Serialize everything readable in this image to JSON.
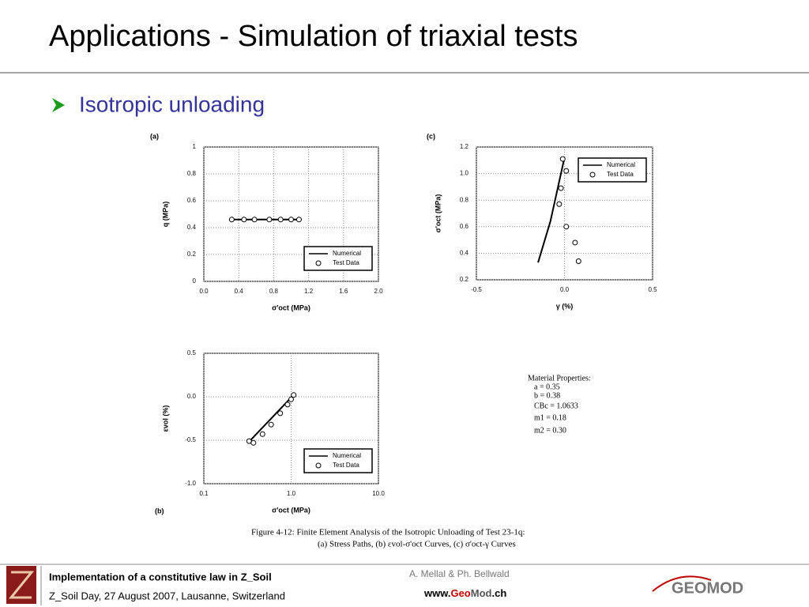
{
  "header": {
    "title": "Applications - Simulation of triaxial tests"
  },
  "bullet": "Isotropic unloading",
  "chart_data": [
    {
      "type": "scatter",
      "panel": "(a)",
      "xlabel": "σ'oct (MPa)",
      "ylabel": "q (MPa)",
      "xlim": [
        0,
        2
      ],
      "xticks": [
        {
          "value": 0,
          "label": "0.0"
        },
        0.4,
        0.8,
        1.2,
        1.6,
        {
          "value": 2,
          "label": "2.0"
        }
      ],
      "ylim": [
        0,
        1
      ],
      "yticks": [
        0,
        0.2,
        0.4,
        0.6,
        0.8,
        1
      ],
      "grid": true,
      "legend": "lower right",
      "series": [
        {
          "name": "Numerical",
          "mode": "line",
          "color": "#000000",
          "x": [
            0.32,
            1.09
          ],
          "y": [
            0.46,
            0.46
          ]
        },
        {
          "name": "Test Data",
          "mode": "markers",
          "color": "#000000",
          "x": [
            0.32,
            0.46,
            0.58,
            0.75,
            0.88,
            1.0,
            1.09
          ],
          "y": [
            0.46,
            0.46,
            0.46,
            0.46,
            0.46,
            0.46,
            0.46
          ]
        }
      ]
    },
    {
      "type": "scatter",
      "panel": "(c)",
      "xlabel": "γ (%)",
      "ylabel": "σ'oct (MPa)",
      "xlim": [
        -0.5,
        0.5
      ],
      "xticks": [
        -0.5,
        {
          "value": 0,
          "label": "0.0"
        },
        0.5
      ],
      "ylim": [
        0.2,
        1.2
      ],
      "yticks": [
        0.2,
        0.4,
        0.6,
        0.8,
        {
          "value": 1,
          "label": "1.0"
        },
        1.2
      ],
      "grid": true,
      "legend": "upper right",
      "series": [
        {
          "name": "Numerical",
          "mode": "line",
          "color": "#000000",
          "x": [
            -0.15,
            -0.08,
            0.0
          ],
          "y": [
            0.33,
            0.64,
            1.12
          ]
        },
        {
          "name": "Test Data",
          "mode": "markers",
          "color": "#000000",
          "x": [
            -0.01,
            0.01,
            -0.02,
            -0.03,
            0.01,
            0.06,
            0.08
          ],
          "y": [
            1.11,
            1.02,
            0.89,
            0.77,
            0.6,
            0.48,
            0.34
          ]
        }
      ]
    },
    {
      "type": "scatter",
      "panel": "(b)",
      "xlabel": "σ'oct (MPa)",
      "ylabel": "εvol (%)",
      "xlim": [
        0.1,
        10
      ],
      "xscale": "log",
      "xticks": [
        0.1,
        {
          "value": 1,
          "label": "1.0"
        },
        {
          "value": 10,
          "label": "10.0"
        }
      ],
      "ylim": [
        -1,
        0.5
      ],
      "yticks": [
        {
          "value": -1,
          "label": "-1.0"
        },
        -0.5,
        {
          "value": 0,
          "label": "0.0"
        },
        0.5
      ],
      "grid": true,
      "legend": "lower right",
      "series": [
        {
          "name": "Numerical",
          "mode": "line",
          "color": "#000000",
          "x": [
            0.335,
            1.02
          ],
          "y": [
            -0.51,
            0.0
          ]
        },
        {
          "name": "Test Data",
          "mode": "markers",
          "color": "#000000",
          "x": [
            0.33,
            0.37,
            0.47,
            0.59,
            0.75,
            0.91,
            1.0,
            1.07
          ],
          "y": [
            -0.51,
            -0.53,
            -0.43,
            -0.32,
            -0.19,
            -0.09,
            -0.03,
            0.02
          ]
        }
      ]
    }
  ],
  "material_properties": {
    "title": "Material Properties:",
    "lines": [
      "a = 0.35",
      "b = 0.38",
      "CBc = 1.0633",
      "m1 = 0.18",
      "m2 = 0.30"
    ]
  },
  "caption": [
    "Figure 4-12:  Finite Element Analysis of the Isotropic Unloading of Test 23-1q:",
    "(a) Stress Paths, (b) εvol-σ'oct Curves, (c) σ'oct-γ Curves"
  ],
  "footer": {
    "line1": "Implementation of a constitutive law in Z_Soil",
    "line2": "Z_Soil Day, 27 August 2007, Lausanne, Switzerland",
    "authors": "A. Mellal & Ph. Bellwald",
    "website": [
      "www.",
      "Geo",
      "Mod",
      ".ch"
    ],
    "logo": "GEOMOD"
  }
}
